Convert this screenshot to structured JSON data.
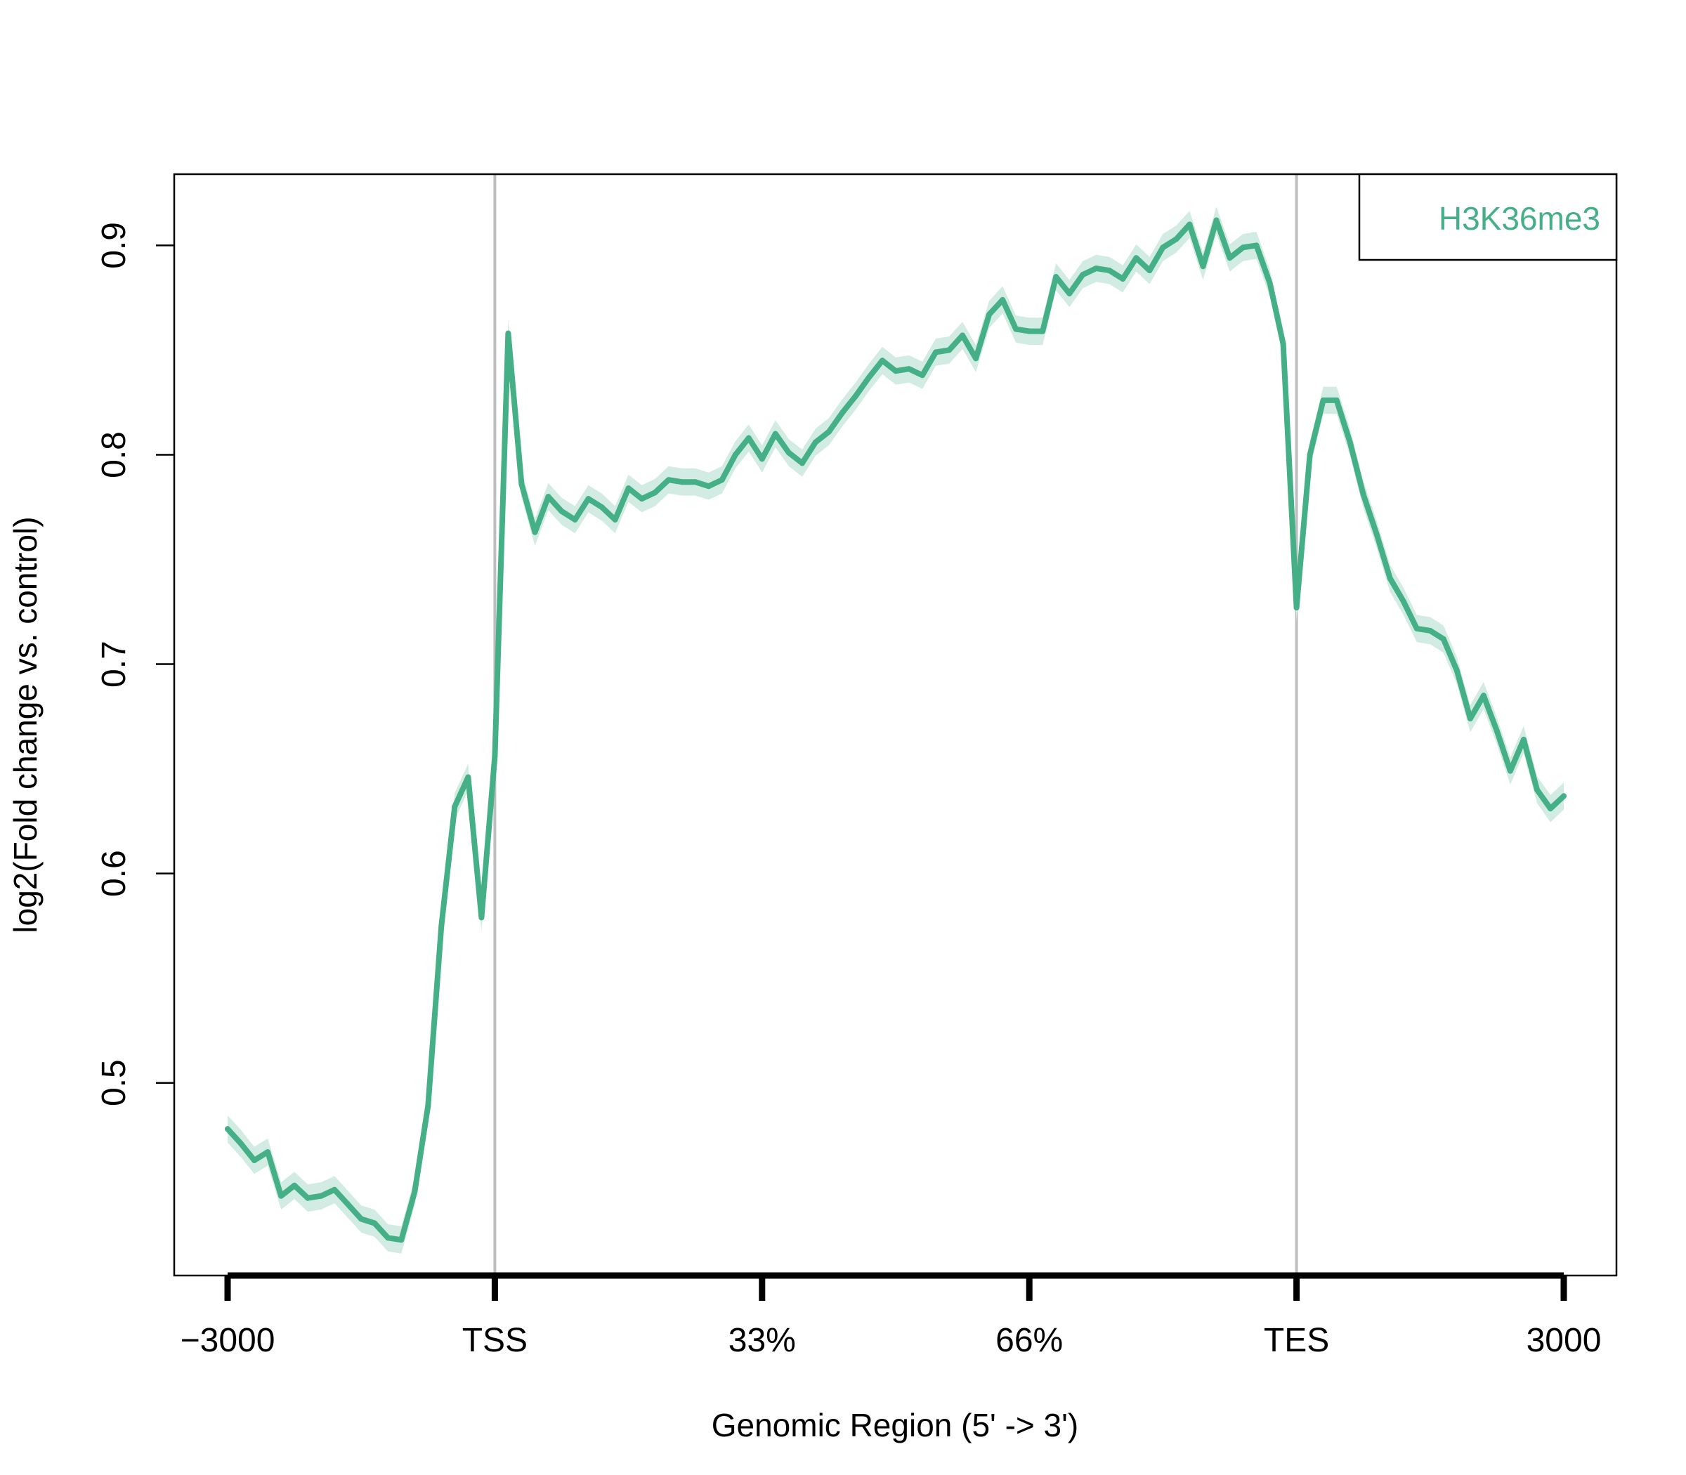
{
  "chart_data": {
    "type": "line",
    "xlabel": "Genomic Region (5' -> 3')",
    "ylabel": "log2(Fold change vs. control)",
    "x_ticks": [
      "-3000",
      "TSS",
      "33%",
      "66%",
      "TES",
      "3000"
    ],
    "y_ticks": [
      "0.5",
      "0.6",
      "0.7",
      "0.8",
      "0.9"
    ],
    "ylim": [
      0.408,
      0.934
    ],
    "grid": false,
    "region_markers": [
      "TSS",
      "TES"
    ],
    "legend": {
      "position": "top-right",
      "entries": [
        "H3K36me3"
      ]
    },
    "colors": {
      "line": "#45AF88",
      "band": "#D3ECE3",
      "marker_line": "#BEBEBE"
    },
    "series": [
      {
        "name": "H3K36me3",
        "x": [
          0,
          0.01,
          0.02,
          0.03,
          0.04,
          0.05,
          0.06,
          0.07,
          0.08,
          0.09,
          0.1,
          0.11,
          0.12,
          0.13,
          0.14,
          0.15,
          0.16,
          0.17,
          0.18,
          0.19,
          0.2,
          0.21,
          0.22,
          0.23,
          0.24,
          0.25,
          0.26,
          0.27,
          0.28,
          0.29,
          0.3,
          0.31,
          0.32,
          0.33,
          0.34,
          0.35,
          0.36,
          0.37,
          0.38,
          0.39,
          0.4,
          0.41,
          0.42,
          0.43,
          0.44,
          0.45,
          0.46,
          0.47,
          0.48,
          0.49,
          0.5,
          0.51,
          0.52,
          0.53,
          0.54,
          0.55,
          0.56,
          0.57,
          0.58,
          0.59,
          0.6,
          0.61,
          0.62,
          0.63,
          0.64,
          0.65,
          0.66,
          0.67,
          0.68,
          0.69,
          0.7,
          0.71,
          0.72,
          0.73,
          0.74,
          0.75,
          0.76,
          0.77,
          0.78,
          0.79,
          0.8,
          0.81,
          0.82,
          0.83,
          0.84,
          0.85,
          0.86,
          0.87,
          0.88,
          0.89,
          0.9,
          0.91,
          0.92,
          0.93,
          0.94,
          0.95,
          0.96,
          0.97,
          0.98,
          0.99,
          1
        ],
        "values": [
          0.478,
          0.471,
          0.463,
          0.467,
          0.446,
          0.451,
          0.445,
          0.446,
          0.449,
          0.442,
          0.435,
          0.433,
          0.426,
          0.425,
          0.448,
          0.489,
          0.575,
          0.632,
          0.646,
          0.579,
          0.656,
          0.858,
          0.786,
          0.763,
          0.78,
          0.773,
          0.769,
          0.779,
          0.775,
          0.769,
          0.784,
          0.779,
          0.782,
          0.788,
          0.787,
          0.787,
          0.785,
          0.788,
          0.8,
          0.808,
          0.798,
          0.81,
          0.801,
          0.796,
          0.806,
          0.811,
          0.82,
          0.828,
          0.837,
          0.845,
          0.84,
          0.841,
          0.838,
          0.849,
          0.85,
          0.857,
          0.846,
          0.867,
          0.874,
          0.86,
          0.859,
          0.859,
          0.885,
          0.877,
          0.886,
          0.889,
          0.888,
          0.884,
          0.894,
          0.888,
          0.899,
          0.903,
          0.91,
          0.89,
          0.912,
          0.894,
          0.899,
          0.9,
          0.882,
          0.853,
          0.727,
          0.8,
          0.826,
          0.826,
          0.806,
          0.781,
          0.762,
          0.741,
          0.73,
          0.717,
          0.716,
          0.712,
          0.697,
          0.674,
          0.685,
          0.668,
          0.649,
          0.664,
          0.64,
          0.631,
          0.637
        ]
      }
    ]
  }
}
